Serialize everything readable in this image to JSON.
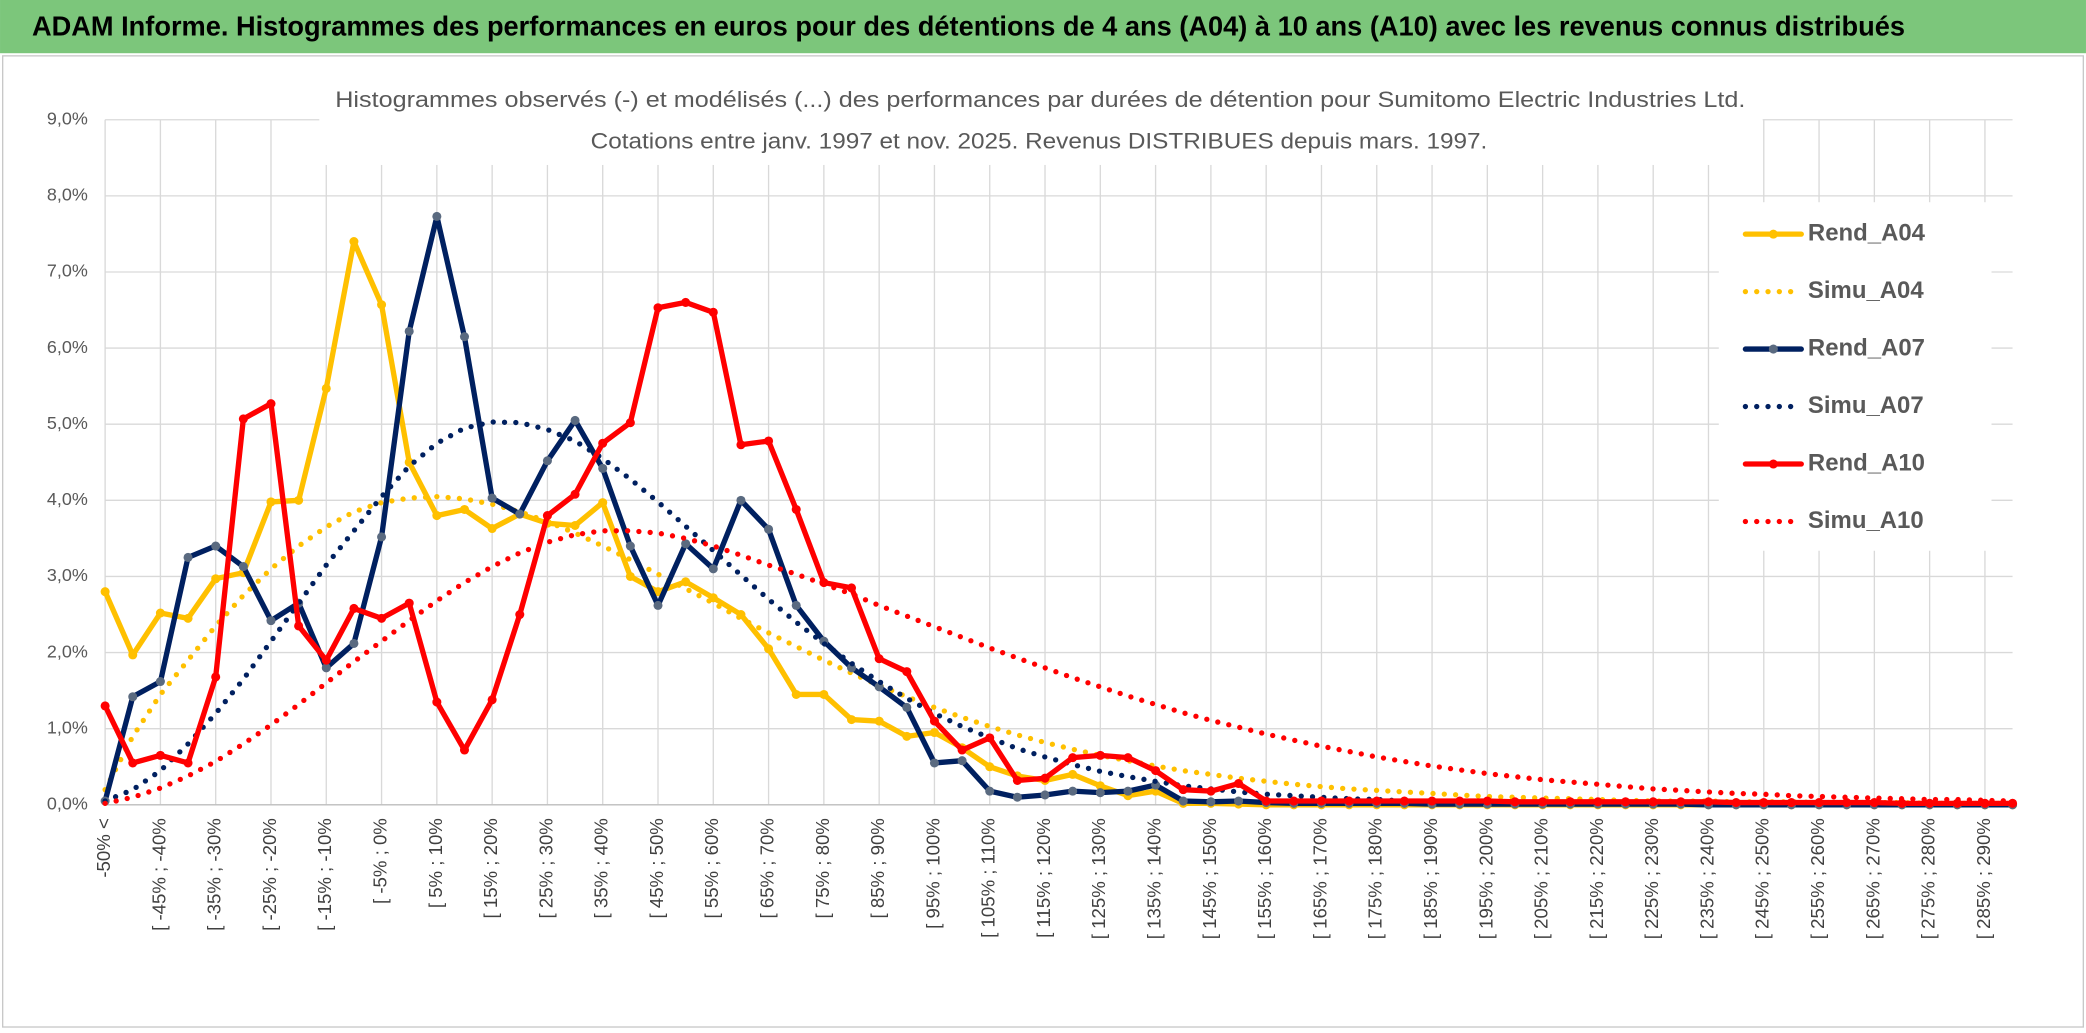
{
  "header": {
    "title": "ADAM Informe. Histogrammes des performances en euros pour des détentions de 4 ans (A04) à 10 ans (A10) avec les revenus connus distribués"
  },
  "chart_data": {
    "type": "line",
    "title": "Histogrammes observés (-) et modélisés (...) des performances par durées de détention pour Sumitomo Electric Industries Ltd.",
    "subtitle": "Cotations entre janv. 1997 et nov. 2025. Revenus DISTRIBUES depuis mars. 1997.",
    "categories": [
      "-50% <",
      null,
      "[ -45% ; -40%",
      null,
      "[ -35% ; -30%",
      null,
      "[ -25% ; -20%",
      null,
      "[ -15% ; -10%",
      null,
      "[ -5% ; 0%",
      null,
      "[ 5% ; 10%",
      null,
      "[ 15% ; 20%",
      null,
      "[ 25% ; 30%",
      null,
      "[ 35% ; 40%",
      null,
      "[ 45% ; 50%",
      null,
      "[ 55% ; 60%",
      null,
      "[ 65% ; 70%",
      null,
      "[ 75% ; 80%",
      null,
      "[ 85% ; 90%",
      null,
      "[ 95% ; 100%",
      null,
      "[ 105% ; 110%",
      null,
      "[ 115% ; 120%",
      null,
      "[ 125% ; 130%",
      null,
      "[ 135% ; 140%",
      null,
      "[ 145% ; 150%",
      null,
      "[ 155% ; 160%",
      null,
      "[ 165% ; 170%",
      null,
      "[ 175% ; 180%",
      null,
      "[ 185% ; 190%",
      null,
      "[ 195% ; 200%",
      null,
      "[ 205% ; 210%",
      null,
      "[ 215% ; 220%",
      null,
      "[ 225% ; 230%",
      null,
      "[ 235% ; 240%",
      null,
      "[ 245% ; 250%",
      null,
      "[ 255% ; 260%",
      null,
      "[ 265% ; 270%",
      null,
      "[ 275% ; 280%",
      null,
      "[ 285% ; 290%",
      null
    ],
    "series": [
      {
        "name": "Rend_A04",
        "color": "#FFC000",
        "style": "solid",
        "values": [
          2.8,
          1.97,
          2.52,
          2.45,
          2.97,
          3.05,
          3.98,
          4.0,
          5.47,
          7.4,
          6.57,
          4.5,
          3.8,
          3.88,
          3.63,
          3.82,
          3.7,
          3.67,
          3.97,
          3.0,
          2.8,
          2.93,
          2.72,
          2.5,
          2.05,
          1.45,
          1.45,
          1.12,
          1.1,
          0.9,
          0.95,
          0.75,
          0.5,
          0.38,
          0.32,
          0.4,
          0.25,
          0.12,
          0.18,
          0.02,
          0.02,
          0.01,
          0,
          0,
          0,
          0,
          0,
          0,
          0,
          0,
          0,
          0,
          0,
          0,
          0,
          0,
          0,
          0,
          0,
          0,
          0,
          0,
          0,
          0,
          0,
          0,
          0,
          0,
          0,
          0
        ]
      },
      {
        "name": "Simu_A04",
        "color": "#FFC000",
        "style": "dotted",
        "values": [
          0.2,
          0.9,
          1.45,
          1.9,
          2.35,
          2.75,
          3.1,
          3.4,
          3.65,
          3.85,
          3.97,
          4.03,
          4.05,
          4.02,
          3.95,
          3.85,
          3.72,
          3.57,
          3.4,
          3.22,
          3.03,
          2.84,
          2.65,
          2.45,
          2.26,
          2.08,
          1.9,
          1.73,
          1.57,
          1.42,
          1.28,
          1.15,
          1.03,
          0.92,
          0.82,
          0.73,
          0.65,
          0.58,
          0.51,
          0.45,
          0.4,
          0.35,
          0.31,
          0.27,
          0.24,
          0.21,
          0.19,
          0.17,
          0.15,
          0.13,
          0.11,
          0.1,
          0.09,
          0.08,
          0.07,
          0.06,
          0.05,
          0.05,
          0.05,
          0.04,
          0.04,
          0.04,
          0.03,
          0.03,
          0.03,
          0.03,
          0.02,
          0.02,
          0.02,
          0.02
        ]
      },
      {
        "name": "Rend_A07",
        "color": "#002060",
        "marker": "#5a6a80",
        "style": "solid",
        "values": [
          0.05,
          1.42,
          1.62,
          3.25,
          3.4,
          3.13,
          2.42,
          2.65,
          1.8,
          2.12,
          3.52,
          6.22,
          7.73,
          6.15,
          4.03,
          3.82,
          4.52,
          5.05,
          4.42,
          3.4,
          2.62,
          3.43,
          3.1,
          4.0,
          3.62,
          2.62,
          2.15,
          1.8,
          1.55,
          1.28,
          0.55,
          0.58,
          0.18,
          0.1,
          0.13,
          0.18,
          0.16,
          0.18,
          0.26,
          0.05,
          0.04,
          0.05,
          0.03,
          0.02,
          0.02,
          0.02,
          0.02,
          0.02,
          0.01,
          0.01,
          0.01,
          0.01,
          0.01,
          0.01,
          0.01,
          0.01,
          0.01,
          0.01,
          0,
          0,
          0,
          0,
          0,
          0,
          0,
          0,
          0,
          0,
          0,
          0
        ]
      },
      {
        "name": "Simu_A07",
        "color": "#002060",
        "style": "dotted",
        "values": [
          0.05,
          0.2,
          0.45,
          0.8,
          1.2,
          1.65,
          2.15,
          2.65,
          3.15,
          3.6,
          4.05,
          4.45,
          4.75,
          4.95,
          5.03,
          5.02,
          4.93,
          4.78,
          4.55,
          4.28,
          3.98,
          3.66,
          3.34,
          3.02,
          2.7,
          2.4,
          2.12,
          1.86,
          1.62,
          1.4,
          1.2,
          1.03,
          0.88,
          0.74,
          0.63,
          0.53,
          0.44,
          0.37,
          0.31,
          0.25,
          0.21,
          0.17,
          0.14,
          0.12,
          0.1,
          0.08,
          0.07,
          0.05,
          0.04,
          0.04,
          0.03,
          0.03,
          0.03,
          0.03,
          0.03,
          0.03,
          0.02,
          0.02,
          0.02,
          0.02,
          0.02,
          0.02,
          0.02,
          0.01,
          0.01,
          0.01,
          0.01,
          0.01,
          0.01,
          0.01
        ]
      },
      {
        "name": "Rend_A10",
        "color": "#FF0000",
        "style": "solid",
        "values": [
          1.3,
          0.55,
          0.65,
          0.55,
          1.68,
          5.07,
          5.27,
          2.35,
          1.9,
          2.58,
          2.45,
          2.65,
          1.35,
          0.72,
          1.38,
          2.5,
          3.8,
          4.08,
          4.75,
          5.02,
          6.53,
          6.6,
          6.47,
          4.73,
          4.78,
          3.88,
          2.92,
          2.85,
          1.92,
          1.75,
          1.1,
          0.72,
          0.88,
          0.32,
          0.35,
          0.62,
          0.65,
          0.62,
          0.45,
          0.2,
          0.18,
          0.28,
          0.05,
          0.05,
          0.05,
          0.05,
          0.05,
          0.05,
          0.05,
          0.05,
          0.05,
          0.04,
          0.04,
          0.04,
          0.04,
          0.04,
          0.04,
          0.04,
          0.04,
          0.03,
          0.03,
          0.03,
          0.03,
          0.03,
          0.03,
          0.02,
          0.02,
          0.02,
          0.02,
          0.02
        ]
      },
      {
        "name": "Simu_A10",
        "color": "#FF0000",
        "style": "dotted",
        "values": [
          0.02,
          0.1,
          0.22,
          0.38,
          0.57,
          0.8,
          1.05,
          1.32,
          1.6,
          1.88,
          2.15,
          2.42,
          2.68,
          2.92,
          3.13,
          3.31,
          3.45,
          3.55,
          3.6,
          3.6,
          3.57,
          3.5,
          3.4,
          3.28,
          3.15,
          3.03,
          2.9,
          2.77,
          2.62,
          2.48,
          2.34,
          2.2,
          2.06,
          1.93,
          1.8,
          1.67,
          1.55,
          1.43,
          1.32,
          1.21,
          1.11,
          1.02,
          0.93,
          0.85,
          0.77,
          0.7,
          0.63,
          0.57,
          0.51,
          0.46,
          0.41,
          0.37,
          0.33,
          0.3,
          0.27,
          0.24,
          0.21,
          0.19,
          0.17,
          0.15,
          0.14,
          0.12,
          0.11,
          0.1,
          0.09,
          0.08,
          0.07,
          0.07,
          0.06,
          0.05
        ]
      }
    ],
    "ylim": [
      0,
      9
    ],
    "yticks": [
      {
        "value": 0,
        "label": "0,0%"
      },
      {
        "value": 1,
        "label": "1,0%"
      },
      {
        "value": 2,
        "label": "2,0%"
      },
      {
        "value": 3,
        "label": "3,0%"
      },
      {
        "value": 4,
        "label": "4,0%"
      },
      {
        "value": 5,
        "label": "5,0%"
      },
      {
        "value": 6,
        "label": "6,0%"
      },
      {
        "value": 7,
        "label": "7,0%"
      },
      {
        "value": 8,
        "label": "8,0%"
      },
      {
        "value": 9,
        "label": "9,0%"
      }
    ],
    "grid": true,
    "legend": "right"
  }
}
